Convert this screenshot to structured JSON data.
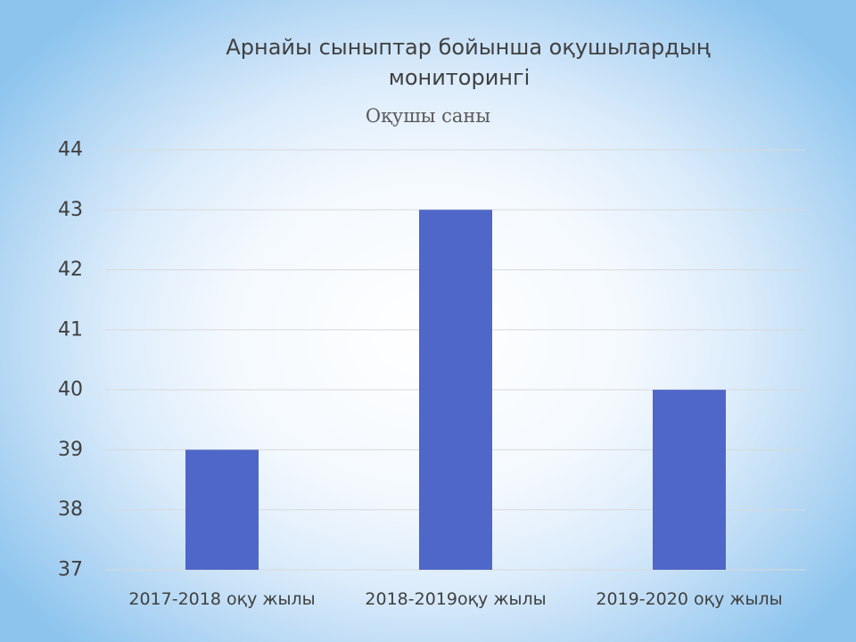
{
  "slide": {
    "title_line_1": "Арнайы сыныптар бойынша оқушылардың",
    "title_line_2": "мониторингі"
  },
  "chart_data": {
    "type": "bar",
    "title": "Оқушы саны",
    "categories": [
      "2017-2018 оқу жылы",
      "2018-2019оқу жылы",
      "2019-2020 оқу жылы"
    ],
    "values": [
      39,
      43,
      40
    ],
    "ylim": [
      37,
      44
    ],
    "yticks": [
      37,
      38,
      39,
      40,
      41,
      42,
      43,
      44
    ],
    "grid": true,
    "legend": "none",
    "bar_color": "#4f67c8",
    "grid_color": "#d9d9d9",
    "xlabel": "",
    "ylabel": ""
  }
}
